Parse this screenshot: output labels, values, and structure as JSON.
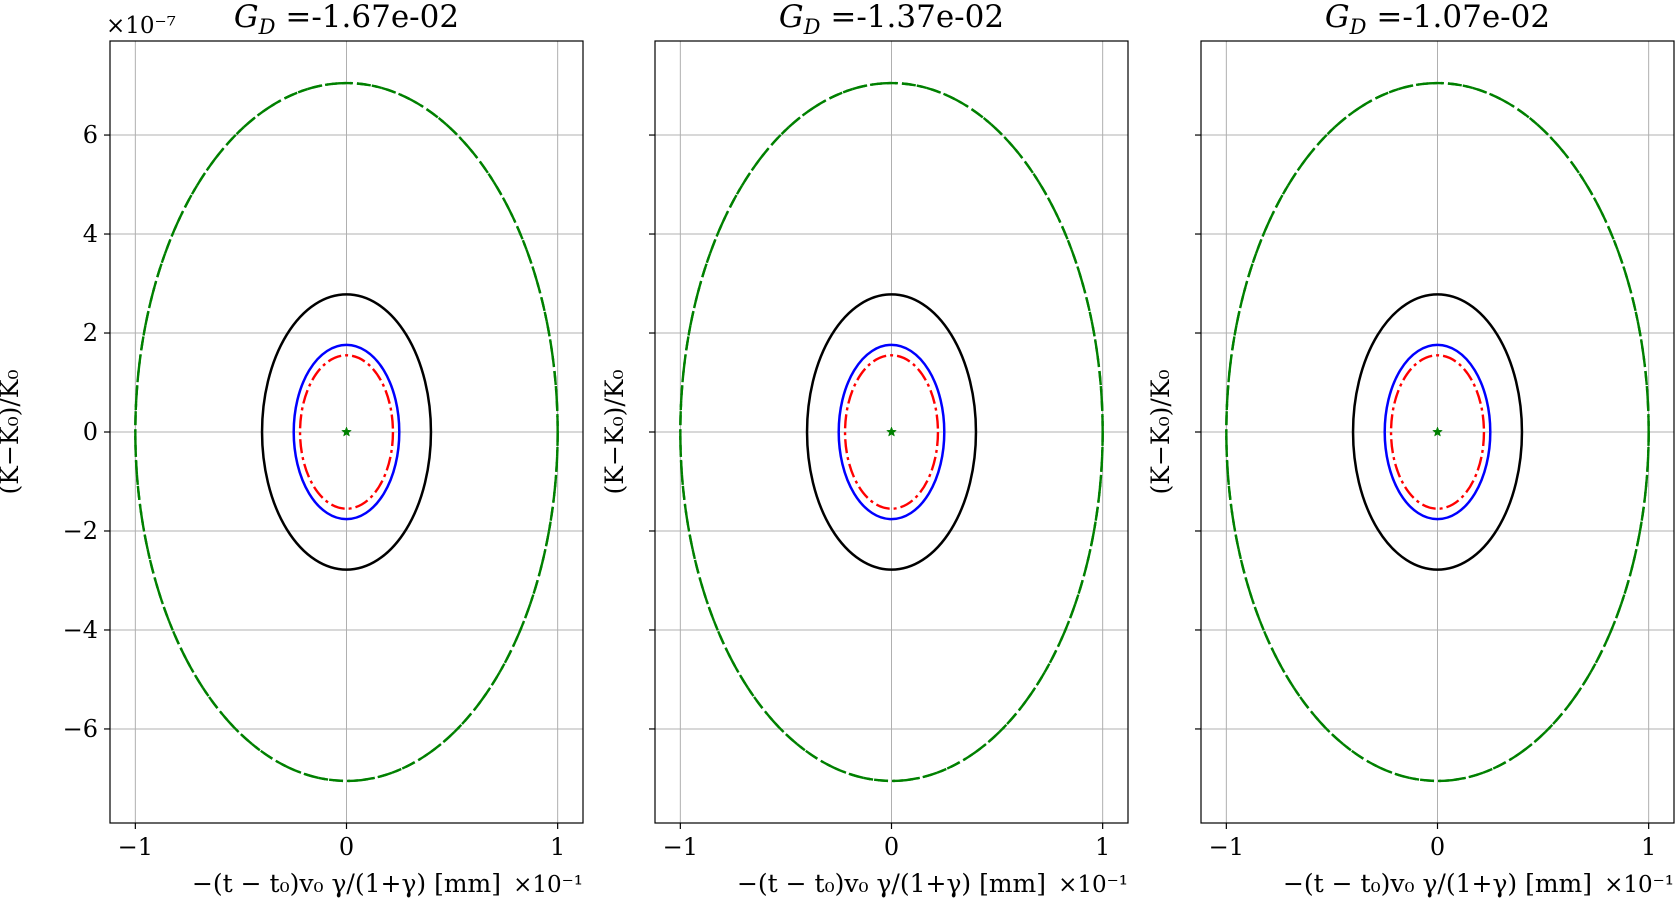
{
  "figure": {
    "y_offset_text": "×10⁻⁷",
    "x_offset_text": "×10⁻¹"
  },
  "chart_data": [
    {
      "type": "line",
      "title": "G_D =-1.67e-02",
      "title_main": "G",
      "title_sub": "D",
      "title_rest": " =-1.67e-02",
      "xlabel": "−(t − t₀)v₀ γ/(1+γ) [mm]",
      "ylabel": "(K−K₀)/K₀",
      "x_scale": "×10⁻¹",
      "y_scale": "×10⁻⁷",
      "xlim": [
        -1.12,
        1.12
      ],
      "ylim": [
        -7.9,
        7.9
      ],
      "xticks": [
        -1,
        0,
        1
      ],
      "xtick_labels": [
        "−1",
        "0",
        "1"
      ],
      "yticks": [
        -6,
        -4,
        -2,
        0,
        2,
        4,
        6
      ],
      "ytick_labels": [
        "−6",
        "−4",
        "−2",
        "0",
        "2",
        "4",
        "6"
      ],
      "show_ytick_labels": true,
      "grid": true,
      "series": [
        {
          "shape": "ellipse",
          "cx": 0.0,
          "cy": 0.0,
          "rx": 1.0,
          "ry": 7.05,
          "color": "#008000",
          "style": "dashdot"
        },
        {
          "shape": "ellipse",
          "cx": 0.0,
          "cy": 0.0,
          "rx": 1.0,
          "ry": 7.05,
          "color": "#008000",
          "style": "dashed"
        },
        {
          "shape": "ellipse",
          "cx": 0.0,
          "cy": 0.0,
          "rx": 0.4,
          "ry": 2.78,
          "color": "#000000",
          "style": "solid"
        },
        {
          "shape": "ellipse",
          "cx": 0.0,
          "cy": 0.0,
          "rx": 0.25,
          "ry": 1.76,
          "color": "#0000ff",
          "style": "solid"
        },
        {
          "shape": "ellipse",
          "cx": 0.0,
          "cy": 0.0,
          "rx": 0.22,
          "ry": 1.55,
          "color": "#ff0000",
          "style": "dashdot"
        },
        {
          "shape": "point",
          "x": 0.0,
          "y": 0.0,
          "color": "#008000",
          "marker": "star"
        }
      ]
    },
    {
      "type": "line",
      "title": "G_D =-1.37e-02",
      "title_main": "G",
      "title_sub": "D",
      "title_rest": " =-1.37e-02",
      "xlabel": "−(t − t₀)v₀ γ/(1+γ) [mm]",
      "ylabel": "(K−K₀)/K₀",
      "x_scale": "×10⁻¹",
      "xlim": [
        -1.12,
        1.12
      ],
      "ylim": [
        -7.9,
        7.9
      ],
      "xticks": [
        -1,
        0,
        1
      ],
      "xtick_labels": [
        "−1",
        "0",
        "1"
      ],
      "yticks": [
        -6,
        -4,
        -2,
        0,
        2,
        4,
        6
      ],
      "show_ytick_labels": false,
      "grid": true,
      "series": [
        {
          "shape": "ellipse",
          "cx": 0.0,
          "cy": 0.0,
          "rx": 1.0,
          "ry": 7.05,
          "color": "#008000",
          "style": "dashdot"
        },
        {
          "shape": "ellipse",
          "cx": 0.0,
          "cy": 0.0,
          "rx": 1.0,
          "ry": 7.05,
          "color": "#008000",
          "style": "dashed"
        },
        {
          "shape": "ellipse",
          "cx": 0.0,
          "cy": 0.0,
          "rx": 0.4,
          "ry": 2.78,
          "color": "#000000",
          "style": "solid"
        },
        {
          "shape": "ellipse",
          "cx": 0.0,
          "cy": 0.0,
          "rx": 0.25,
          "ry": 1.76,
          "color": "#0000ff",
          "style": "solid"
        },
        {
          "shape": "ellipse",
          "cx": 0.0,
          "cy": 0.0,
          "rx": 0.22,
          "ry": 1.55,
          "color": "#ff0000",
          "style": "dashdot"
        },
        {
          "shape": "point",
          "x": 0.0,
          "y": 0.0,
          "color": "#008000",
          "marker": "star"
        }
      ]
    },
    {
      "type": "line",
      "title": "G_D =-1.07e-02",
      "title_main": "G",
      "title_sub": "D",
      "title_rest": " =-1.07e-02",
      "xlabel": "−(t − t₀)v₀ γ/(1+γ) [mm]",
      "ylabel": "(K−K₀)/K₀",
      "x_scale": "×10⁻¹",
      "xlim": [
        -1.12,
        1.12
      ],
      "ylim": [
        -7.9,
        7.9
      ],
      "xticks": [
        -1,
        0,
        1
      ],
      "xtick_labels": [
        "−1",
        "0",
        "1"
      ],
      "yticks": [
        -6,
        -4,
        -2,
        0,
        2,
        4,
        6
      ],
      "show_ytick_labels": false,
      "grid": true,
      "series": [
        {
          "shape": "ellipse",
          "cx": 0.0,
          "cy": 0.0,
          "rx": 1.0,
          "ry": 7.05,
          "color": "#008000",
          "style": "dashdot"
        },
        {
          "shape": "ellipse",
          "cx": 0.0,
          "cy": 0.0,
          "rx": 1.0,
          "ry": 7.05,
          "color": "#008000",
          "style": "dashed"
        },
        {
          "shape": "ellipse",
          "cx": 0.0,
          "cy": 0.0,
          "rx": 0.4,
          "ry": 2.78,
          "color": "#000000",
          "style": "solid"
        },
        {
          "shape": "ellipse",
          "cx": 0.0,
          "cy": 0.0,
          "rx": 0.25,
          "ry": 1.76,
          "color": "#0000ff",
          "style": "solid"
        },
        {
          "shape": "ellipse",
          "cx": 0.0,
          "cy": 0.0,
          "rx": 0.22,
          "ry": 1.55,
          "color": "#ff0000",
          "style": "dashdot"
        },
        {
          "shape": "point",
          "x": 0.0,
          "y": 0.0,
          "color": "#008000",
          "marker": "star"
        }
      ]
    }
  ]
}
